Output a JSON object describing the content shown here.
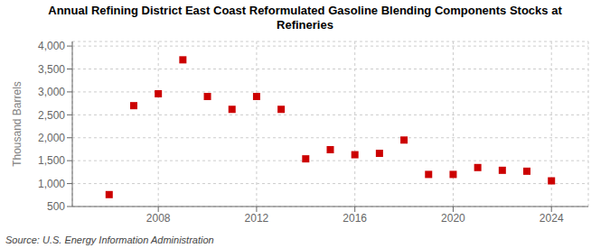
{
  "chart_data": {
    "type": "scatter",
    "title": "Annual Refining District East Coast Reformulated Gasoline Blending Components Stocks at\nRefineries",
    "ylabel": "Thousand Barrels",
    "source": "Source: U.S. Energy Information Administration",
    "x": [
      2006,
      2007,
      2008,
      2009,
      2010,
      2011,
      2012,
      2013,
      2014,
      2015,
      2016,
      2017,
      2018,
      2019,
      2020,
      2021,
      2022,
      2023,
      2024
    ],
    "values": [
      760,
      2700,
      2960,
      3700,
      2900,
      2620,
      2900,
      2620,
      1540,
      1740,
      1630,
      1660,
      1950,
      1200,
      1200,
      1350,
      1290,
      1270,
      1060
    ],
    "color": "#cc0000",
    "marker": "square",
    "ylim": [
      500,
      4100
    ],
    "yticks": [
      500,
      {
        "value": 1000,
        "label": "1,000"
      },
      {
        "value": 1500,
        "label": "1,500"
      },
      {
        "value": 2000,
        "label": "2,000"
      },
      {
        "value": 2500,
        "label": "2,500"
      },
      {
        "value": 3000,
        "label": "3,000"
      },
      {
        "value": 3500,
        "label": "3,500"
      },
      {
        "value": 4000,
        "label": "4,000"
      }
    ],
    "xlim": [
      2004.5,
      2025.5
    ],
    "xticks": [
      2008,
      2012,
      2016,
      2020,
      2024
    ],
    "grid": true
  }
}
